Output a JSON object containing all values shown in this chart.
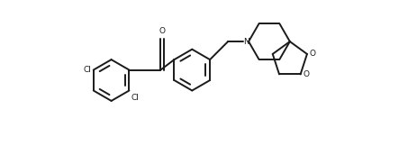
{
  "bg_color": "#ffffff",
  "line_color": "#1a1a1a",
  "line_width": 1.4,
  "figsize": [
    4.64,
    1.62
  ],
  "dpi": 100,
  "xlim": [
    -0.5,
    8.5
  ],
  "ylim": [
    -1.8,
    2.2
  ]
}
